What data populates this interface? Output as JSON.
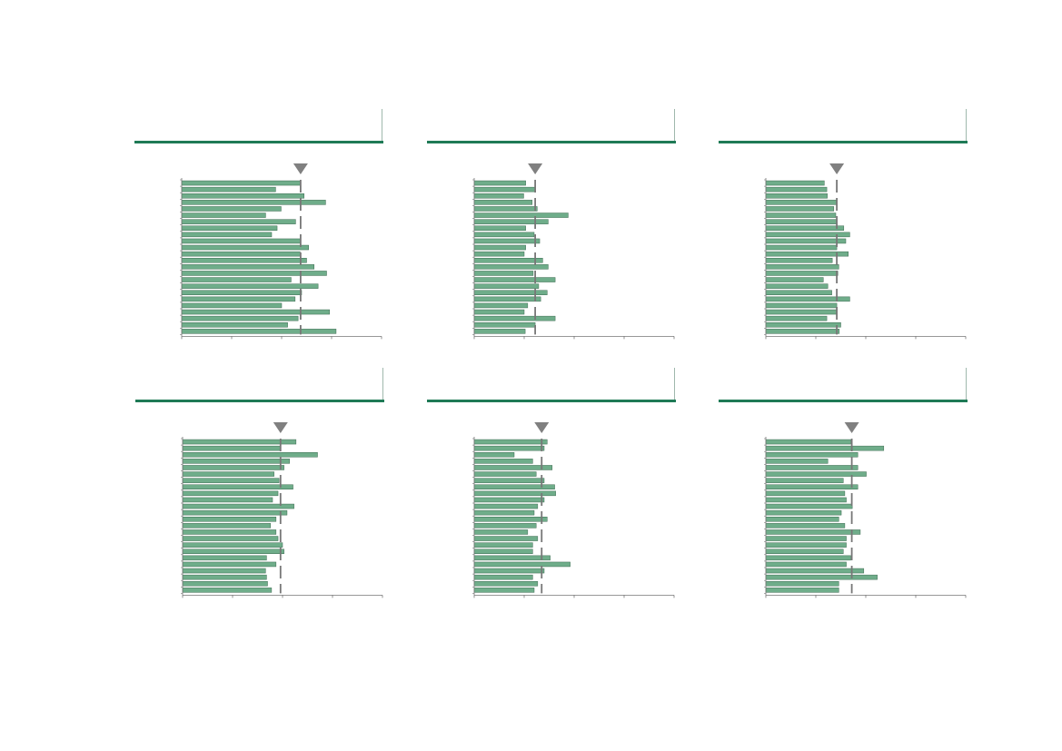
{
  "colors": {
    "bar_fill": "#6fad8a",
    "bar_stroke": "#3e6b52",
    "header_rule": "#1f7a56",
    "reference_line": "#777777",
    "marker": "#808080",
    "axis": "#777777"
  },
  "chart_data": [
    {
      "type": "bar",
      "orientation": "horizontal",
      "title": "",
      "xlim": [
        0,
        4
      ],
      "reference_value": 2.38,
      "values": [
        2.38,
        1.88,
        2.45,
        2.88,
        1.99,
        1.68,
        2.28,
        1.91,
        1.8,
        2.38,
        2.54,
        2.37,
        2.5,
        2.65,
        2.9,
        2.19,
        2.73,
        2.4,
        2.27,
        2.0,
        2.96,
        2.33,
        2.12,
        3.09
      ]
    },
    {
      "type": "bar",
      "orientation": "horizontal",
      "title": "",
      "xlim": [
        0,
        4
      ],
      "reference_value": 1.22,
      "values": [
        1.03,
        1.23,
        0.99,
        1.16,
        1.26,
        1.88,
        1.48,
        1.03,
        1.2,
        1.31,
        1.03,
        1.0,
        1.37,
        1.48,
        1.18,
        1.62,
        1.29,
        1.46,
        1.33,
        1.07,
        1.0,
        1.62,
        1.22,
        1.02
      ]
    },
    {
      "type": "bar",
      "orientation": "horizontal",
      "title": "",
      "xlim": [
        0,
        4
      ],
      "reference_value": 1.42,
      "values": [
        1.17,
        1.22,
        1.23,
        1.42,
        1.36,
        1.4,
        1.42,
        1.56,
        1.68,
        1.6,
        1.42,
        1.65,
        1.33,
        1.46,
        1.44,
        1.15,
        1.24,
        1.32,
        1.68,
        1.42,
        1.42,
        1.22,
        1.5,
        1.47
      ]
    },
    {
      "type": "bar",
      "orientation": "horizontal",
      "title": "",
      "xlim": [
        0,
        4
      ],
      "reference_value": 1.96,
      "values": [
        2.27,
        1.96,
        2.7,
        2.14,
        2.03,
        1.83,
        1.93,
        2.21,
        1.91,
        1.8,
        2.23,
        2.09,
        1.87,
        1.76,
        1.87,
        1.91,
        2.0,
        2.03,
        1.68,
        1.87,
        1.66,
        1.68,
        1.7,
        1.78
      ]
    },
    {
      "type": "bar",
      "orientation": "horizontal",
      "title": "",
      "xlim": [
        0,
        4
      ],
      "reference_value": 1.35,
      "values": [
        1.46,
        1.4,
        0.8,
        1.17,
        1.56,
        1.24,
        1.4,
        1.61,
        1.63,
        1.4,
        1.27,
        1.2,
        1.46,
        1.24,
        1.07,
        1.27,
        1.17,
        1.17,
        1.52,
        1.92,
        1.4,
        1.17,
        1.27,
        1.2
      ]
    },
    {
      "type": "bar",
      "orientation": "horizontal",
      "title": "",
      "xlim": [
        0,
        4
      ],
      "reference_value": 1.72,
      "values": [
        1.7,
        2.36,
        1.84,
        1.24,
        1.84,
        2.01,
        1.55,
        1.84,
        1.58,
        1.61,
        1.73,
        1.51,
        1.46,
        1.58,
        1.89,
        1.61,
        1.61,
        1.55,
        1.7,
        1.61,
        1.96,
        2.23,
        1.46,
        1.46
      ]
    }
  ]
}
